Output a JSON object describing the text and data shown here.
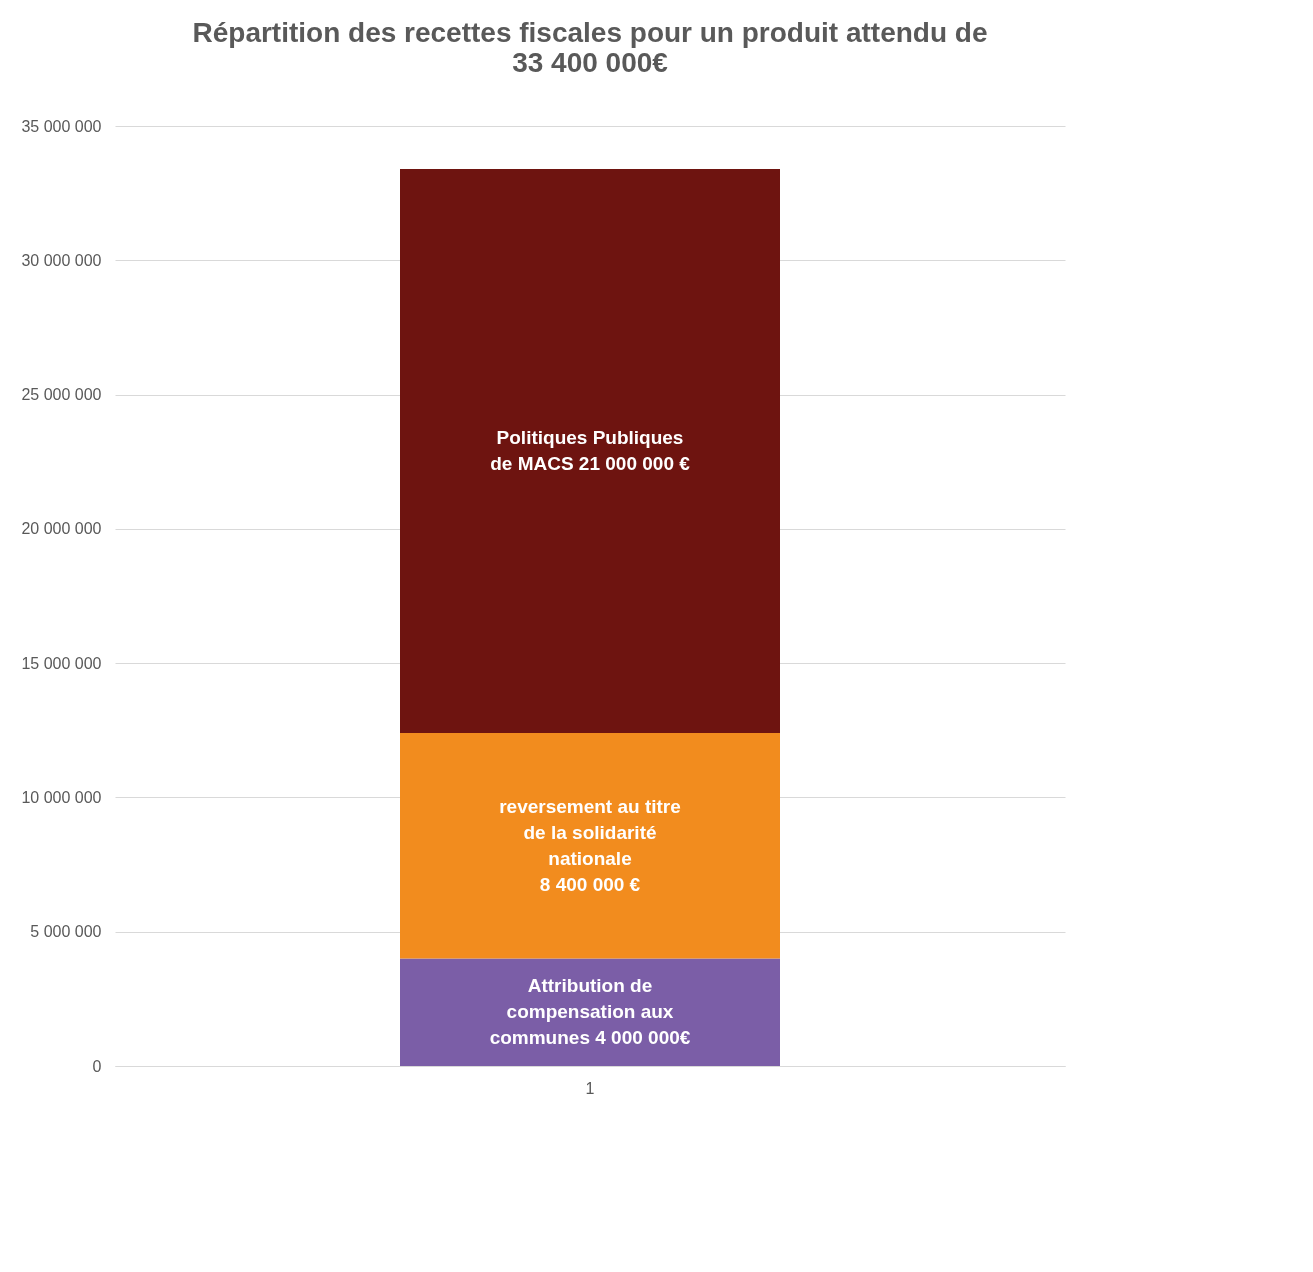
{
  "chart_data": {
    "type": "bar",
    "title": "Répartition des recettes fiscales pour un produit attendu de 33 400 000€",
    "categories": [
      "1"
    ],
    "stacked": true,
    "grid": "y",
    "ylim": [
      0,
      35000000
    ],
    "yticks": [
      0,
      {
        "value": 5000000,
        "label": "5 000 000"
      },
      {
        "value": 10000000,
        "label": "10 000 000"
      },
      {
        "value": 15000000,
        "label": "15 000 000"
      },
      {
        "value": 20000000,
        "label": "20 000 000"
      },
      {
        "value": 25000000,
        "label": "25 000 000"
      },
      {
        "value": 30000000,
        "label": "30 000 000"
      },
      {
        "value": 35000000,
        "label": "35 000 000"
      }
    ],
    "series": [
      {
        "name": "Attribution de compensation aux communes",
        "color": "#7b5ea7",
        "values": [
          4000000
        ],
        "value_labels": [
          "4 000 000€"
        ]
      },
      {
        "name": "reversement au titre de la solidarité nationale",
        "color": "#f28c1e",
        "values": [
          8400000
        ],
        "value_labels": [
          "8 400 000 €"
        ]
      },
      {
        "name": "Politiques Publiques de MACS",
        "color": "#6e1410",
        "values": [
          21000000
        ],
        "value_labels": [
          "21 000 000 €"
        ]
      }
    ]
  }
}
